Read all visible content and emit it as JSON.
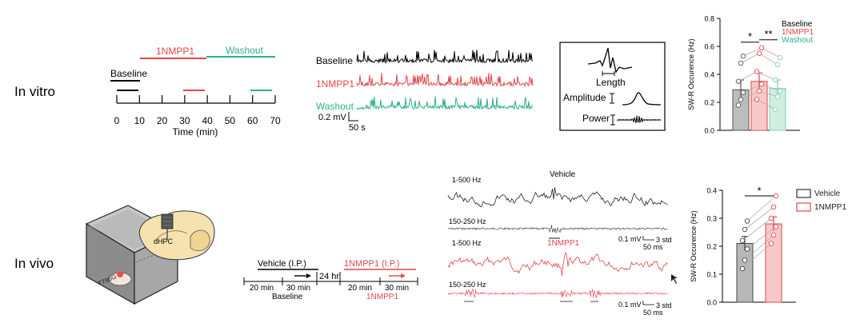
{
  "row_labels": {
    "vitro": "In vitro",
    "vivo": "In vivo"
  },
  "colors": {
    "baseline": "#000000",
    "drug": "#e0474c",
    "washout": "#2eb08a",
    "vehicle": "#333333",
    "bar_gray": "#bdbdbd",
    "bar_pink": "#f8c9c9",
    "bar_green": "#cfeee2"
  },
  "timeline": {
    "phase_labels": {
      "drug": "1NMPP1",
      "washout": "Washout",
      "baseline": "Baseline"
    },
    "ticks": [
      "0",
      "10",
      "20",
      "30",
      "40",
      "50",
      "60",
      "70"
    ],
    "xlabel": "Time (min)"
  },
  "traces_vitro": {
    "labels": [
      "Baseline",
      "1NMPP1",
      "Washout"
    ],
    "scale_y": "0.2 mV",
    "scale_x": "50 s"
  },
  "inset": {
    "length": "Length",
    "amplitude": "Amplitude",
    "power": "Power"
  },
  "protocol": {
    "vehicle": "Vehicle (I.P.)",
    "drug": "1NMPP1 (I.P.)",
    "gap": "24 hr",
    "durations": [
      "20 min",
      "30 min",
      "20 min",
      "30 min"
    ],
    "sublabels": {
      "baseline": "Baseline",
      "drug": "1NMPP1"
    }
  },
  "mouse_diagram": {
    "region": "dHPC",
    "strain": "T796G"
  },
  "traces_vivo": {
    "band_labels": [
      "1-500 Hz",
      "150-250 Hz",
      "1-500 Hz",
      "150-250 Hz"
    ],
    "condition_labels": {
      "vehicle": "Vehicle",
      "drug": "1NMPP1"
    },
    "scale_labels": [
      "0.1 mV",
      "3 std",
      "50 ms",
      "0.1 mV",
      "3 std",
      "50 ms"
    ]
  },
  "chart_data": [
    {
      "type": "bar",
      "ylabel": "SW-R Occurence (Hz)",
      "yticks": [
        "0.0",
        "0.2",
        "0.4",
        "0.6",
        "0.8"
      ],
      "ylim": [
        0,
        0.8
      ],
      "categories": [
        "Baseline",
        "1NMPP1",
        "Washout"
      ],
      "values": [
        0.29,
        0.35,
        0.3
      ],
      "errors": [
        0.07,
        0.06,
        0.06
      ],
      "legend": [
        "Baseline",
        "1NMPP1",
        "Washout"
      ],
      "legend_position": "top-right",
      "significance": [
        "*",
        "**"
      ],
      "individual_points": [
        [
          0.18,
          0.22,
          0.27,
          0.35,
          0.48,
          0.53
        ],
        [
          0.22,
          0.28,
          0.33,
          0.42,
          0.55,
          0.59
        ],
        [
          0.15,
          0.24,
          0.28,
          0.36,
          0.47,
          0.52
        ]
      ]
    },
    {
      "type": "bar",
      "ylabel": "SW-R  Occurence (Hz)",
      "yticks": [
        "0.0",
        "0.1",
        "0.2",
        "0.3",
        "0.4"
      ],
      "ylim": [
        0,
        0.4
      ],
      "categories": [
        "Vehicle",
        "1NMPP1"
      ],
      "values": [
        0.21,
        0.28
      ],
      "errors": [
        0.025,
        0.025
      ],
      "legend": [
        "Vehicle",
        "1NMPP1"
      ],
      "legend_position": "top-right",
      "significance": [
        "*"
      ],
      "individual_points": [
        [
          0.12,
          0.15,
          0.19,
          0.22,
          0.26,
          0.29
        ],
        [
          0.21,
          0.24,
          0.27,
          0.3,
          0.34,
          0.38
        ]
      ]
    }
  ]
}
